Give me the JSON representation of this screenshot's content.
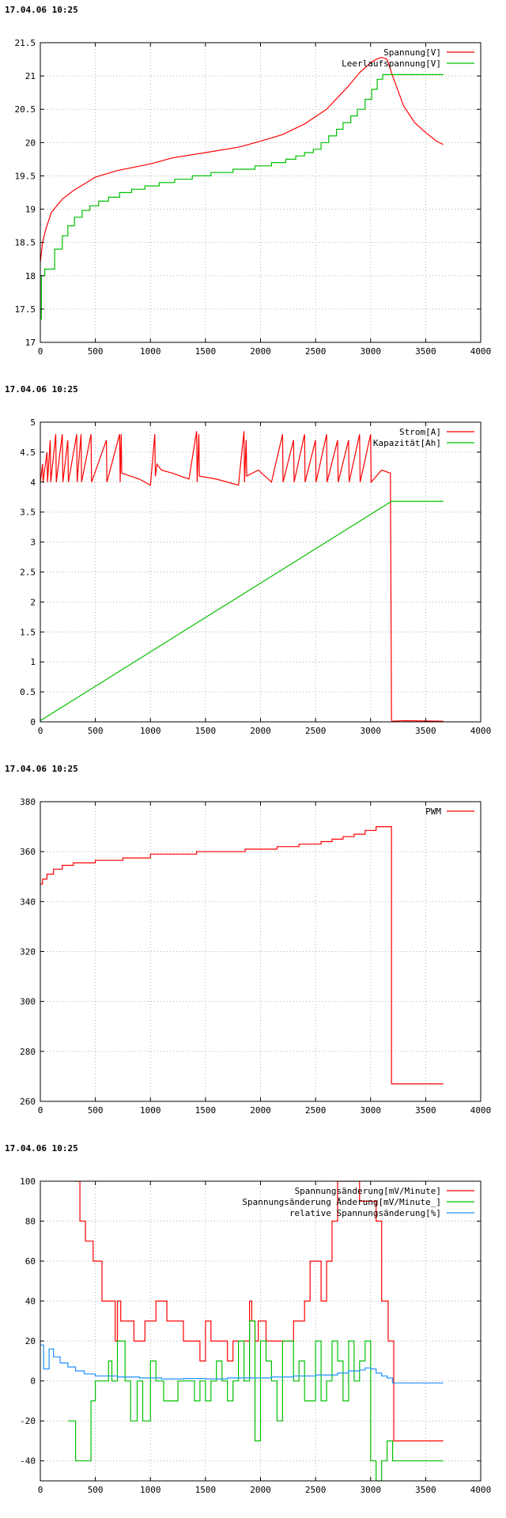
{
  "chart_data": [
    {
      "type": "line",
      "timestamp": "17.04.06 10:25",
      "xlim": [
        0,
        4000
      ],
      "ylim": [
        17,
        21.5
      ],
      "xticks": [
        0,
        500,
        1000,
        1500,
        2000,
        2500,
        3000,
        3500,
        4000
      ],
      "yticks": [
        17,
        17.5,
        18,
        18.5,
        19,
        19.5,
        20,
        20.5,
        21,
        21.5
      ],
      "ytick_labels": [
        "17",
        "17.5",
        "18",
        "18.5",
        "19",
        "19.5",
        "20",
        "20.5",
        "21",
        "21.5"
      ],
      "grid": true,
      "legend": "top-right",
      "series": [
        {
          "name": "Spannung[V]",
          "color": "#ff0000",
          "step": false,
          "x": [
            0,
            20,
            50,
            100,
            200,
            300,
            400,
            500,
            700,
            1000,
            1200,
            1500,
            1800,
            2000,
            2200,
            2400,
            2600,
            2800,
            2900,
            3000,
            3050,
            3100,
            3150,
            3200,
            3300,
            3400,
            3500,
            3600,
            3660
          ],
          "y": [
            18.2,
            18.5,
            18.7,
            18.95,
            19.15,
            19.28,
            19.38,
            19.48,
            19.58,
            19.68,
            19.77,
            19.85,
            19.93,
            20.02,
            20.12,
            20.28,
            20.5,
            20.85,
            21.05,
            21.2,
            21.25,
            21.28,
            21.25,
            21.0,
            20.55,
            20.3,
            20.15,
            20.02,
            19.97
          ]
        },
        {
          "name": "Leerlaufspannung[V]",
          "color": "#00c000",
          "step": true,
          "x": [
            0,
            10,
            40,
            130,
            200,
            250,
            310,
            380,
            450,
            530,
            620,
            720,
            830,
            950,
            1080,
            1220,
            1380,
            1550,
            1750,
            1950,
            2100,
            2230,
            2320,
            2400,
            2480,
            2550,
            2620,
            2690,
            2750,
            2820,
            2880,
            2950,
            3010,
            3060,
            3110,
            3660
          ],
          "y": [
            17.35,
            18.0,
            18.1,
            18.4,
            18.6,
            18.75,
            18.88,
            18.98,
            19.05,
            19.12,
            19.18,
            19.25,
            19.3,
            19.35,
            19.4,
            19.45,
            19.5,
            19.55,
            19.6,
            19.65,
            19.7,
            19.75,
            19.8,
            19.85,
            19.9,
            20.0,
            20.1,
            20.2,
            20.3,
            20.4,
            20.5,
            20.65,
            20.8,
            20.95,
            21.02,
            21.02
          ]
        }
      ]
    },
    {
      "type": "line",
      "timestamp": "17.04.06 10:25",
      "xlim": [
        0,
        4000
      ],
      "ylim": [
        0,
        5
      ],
      "xticks": [
        0,
        500,
        1000,
        1500,
        2000,
        2500,
        3000,
        3500,
        4000
      ],
      "yticks": [
        0,
        0.5,
        1,
        1.5,
        2,
        2.5,
        3,
        3.5,
        4,
        4.5,
        5
      ],
      "ytick_labels": [
        "0",
        "0.5",
        "1",
        "1.5",
        "2",
        "2.5",
        "3",
        "3.5",
        "4",
        "4.5",
        "5"
      ],
      "grid": true,
      "legend": "top-right",
      "series": [
        {
          "name": "Strom[A]",
          "color": "#ff0000",
          "step": false,
          "x": [
            0,
            20,
            25,
            60,
            65,
            90,
            95,
            140,
            145,
            200,
            205,
            250,
            255,
            330,
            335,
            370,
            375,
            460,
            465,
            600,
            605,
            720,
            725,
            735,
            740,
            900,
            1000,
            1040,
            1045,
            1060,
            1100,
            1200,
            1350,
            1420,
            1425,
            1440,
            1445,
            1600,
            1800,
            1850,
            1855,
            1870,
            1875,
            1980,
            2100,
            2200,
            2205,
            2300,
            2305,
            2400,
            2405,
            2500,
            2505,
            2600,
            2605,
            2700,
            2705,
            2800,
            2805,
            2900,
            2905,
            3000,
            3005,
            3100,
            3180,
            3190,
            3195,
            3300,
            3660
          ],
          "y": [
            4.0,
            4.3,
            4.0,
            4.5,
            4.0,
            4.7,
            4.0,
            4.8,
            4.0,
            4.8,
            4.0,
            4.7,
            4.0,
            4.8,
            4.0,
            4.8,
            4.0,
            4.8,
            4.0,
            4.7,
            4.0,
            4.8,
            4.0,
            4.8,
            4.15,
            4.05,
            3.95,
            4.8,
            4.1,
            4.3,
            4.2,
            4.15,
            4.05,
            4.85,
            4.0,
            4.8,
            4.1,
            4.05,
            3.95,
            4.85,
            4.0,
            4.7,
            4.1,
            4.2,
            4.0,
            4.8,
            4.0,
            4.7,
            4.0,
            4.8,
            4.0,
            4.7,
            4.0,
            4.8,
            4.0,
            4.7,
            4.0,
            4.7,
            4.0,
            4.8,
            4.0,
            4.8,
            4.0,
            4.2,
            4.15,
            0.03,
            0.01,
            0.02,
            0.01
          ]
        },
        {
          "name": "Kapazität[Ah]",
          "color": "#00c000",
          "step": false,
          "x": [
            0,
            3190,
            3660
          ],
          "y": [
            0.02,
            3.68,
            3.68
          ]
        }
      ]
    },
    {
      "type": "line",
      "timestamp": "17.04.06 10:25",
      "xlim": [
        0,
        4000
      ],
      "ylim": [
        260,
        380
      ],
      "xticks": [
        0,
        500,
        1000,
        1500,
        2000,
        2500,
        3000,
        3500,
        4000
      ],
      "yticks": [
        260,
        280,
        300,
        320,
        340,
        360,
        380
      ],
      "ytick_labels": [
        "260",
        "280",
        "300",
        "320",
        "340",
        "360",
        "380"
      ],
      "grid": true,
      "legend": "top-right",
      "series": [
        {
          "name": "PWM",
          "color": "#ff0000",
          "step": true,
          "x": [
            0,
            20,
            60,
            120,
            200,
            300,
            500,
            750,
            1000,
            1420,
            1860,
            2150,
            2350,
            2550,
            2650,
            2750,
            2850,
            2950,
            3050,
            3185,
            3190,
            3660
          ],
          "y": [
            347,
            349,
            351,
            353,
            354.5,
            355.5,
            356.5,
            357.5,
            359,
            360,
            361,
            362,
            363,
            364,
            365,
            366,
            367,
            368.5,
            370,
            370,
            267,
            267
          ]
        }
      ]
    },
    {
      "type": "line",
      "timestamp": "17.04.06 10:25",
      "xlim": [
        0,
        4000
      ],
      "ylim": [
        -50,
        100
      ],
      "xticks": [
        0,
        500,
        1000,
        1500,
        2000,
        2500,
        3000,
        3500,
        4000
      ],
      "yticks": [
        -40,
        -20,
        0,
        20,
        40,
        60,
        80,
        100
      ],
      "ytick_labels": [
        "-40",
        "-20",
        "0",
        "20",
        "40",
        "60",
        "80",
        "100"
      ],
      "grid": true,
      "legend": "top-right",
      "series": [
        {
          "name": "Spannungsänderung[mV/Minute]",
          "color": "#ff0000",
          "step": true,
          "x": [
            310,
            360,
            410,
            480,
            560,
            680,
            700,
            730,
            850,
            950,
            1050,
            1150,
            1300,
            1400,
            1450,
            1500,
            1550,
            1700,
            1750,
            1800,
            1900,
            1920,
            1950,
            1980,
            2050,
            2120,
            2200,
            2300,
            2400,
            2450,
            2550,
            2600,
            2650,
            2700,
            2800,
            2900,
            3050,
            3100,
            3160,
            3210,
            3660
          ],
          "y": [
            100,
            80,
            70,
            60,
            40,
            20,
            40,
            30,
            20,
            30,
            40,
            30,
            20,
            20,
            10,
            30,
            20,
            10,
            20,
            20,
            40,
            30,
            20,
            30,
            20,
            20,
            20,
            30,
            40,
            60,
            40,
            60,
            80,
            100,
            100,
            90,
            80,
            40,
            20,
            -30,
            -30
          ]
        },
        {
          "name": "Spannungsänderung Änderung[mV/Minute_]",
          "color": "#00c000",
          "step": true,
          "x": [
            250,
            320,
            460,
            500,
            620,
            650,
            700,
            770,
            820,
            880,
            930,
            1000,
            1050,
            1120,
            1250,
            1400,
            1450,
            1500,
            1550,
            1600,
            1650,
            1700,
            1750,
            1800,
            1850,
            1900,
            1950,
            2000,
            2050,
            2100,
            2150,
            2200,
            2300,
            2350,
            2400,
            2500,
            2550,
            2600,
            2650,
            2700,
            2750,
            2800,
            2850,
            2900,
            2950,
            3000,
            3050,
            3100,
            3150,
            3200,
            3660
          ],
          "y": [
            -20,
            -40,
            -10,
            0,
            10,
            0,
            20,
            0,
            -20,
            0,
            -20,
            10,
            0,
            -10,
            0,
            -10,
            0,
            -10,
            0,
            10,
            0,
            -10,
            0,
            20,
            0,
            30,
            -30,
            20,
            10,
            0,
            -20,
            20,
            0,
            10,
            -10,
            20,
            -10,
            0,
            20,
            10,
            -10,
            20,
            0,
            10,
            20,
            -40,
            -50,
            -40,
            -30,
            -40,
            -40
          ]
        },
        {
          "name": "relative Spannungsänderung[%]",
          "color": "#1e90ff",
          "step": true,
          "x": [
            0,
            30,
            80,
            120,
            180,
            250,
            320,
            400,
            500,
            700,
            900,
            1100,
            1300,
            1500,
            1700,
            1900,
            2100,
            2300,
            2500,
            2700,
            2800,
            2900,
            2950,
            3000,
            3050,
            3100,
            3150,
            3200,
            3660
          ],
          "y": [
            18,
            6,
            16,
            12,
            9,
            7,
            5,
            3.5,
            2.5,
            2,
            1.5,
            1,
            1.2,
            1,
            1.5,
            1.5,
            2,
            2.5,
            3,
            4,
            5,
            5.5,
            6.5,
            6,
            4,
            2.5,
            1.5,
            -1,
            -1
          ]
        }
      ]
    }
  ]
}
